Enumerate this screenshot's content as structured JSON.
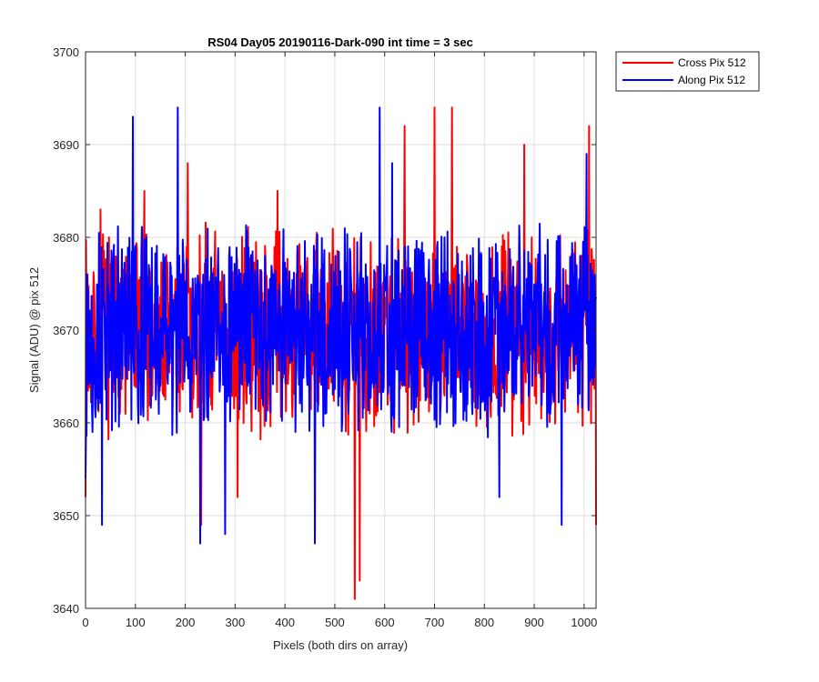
{
  "chart_data": {
    "type": "line",
    "title": "RS04 Day05 20190116-Dark-090 int time = 3 sec",
    "xlabel": "Pixels (both dirs on array)",
    "ylabel": "Signal (ADU) @ pix 512",
    "xlim": [
      0,
      1024
    ],
    "ylim": [
      3640,
      3700
    ],
    "xticks": [
      0,
      100,
      200,
      300,
      400,
      500,
      600,
      700,
      800,
      900,
      1000
    ],
    "yticks": [
      3640,
      3650,
      3660,
      3670,
      3680,
      3690,
      3700
    ],
    "xtick_labels": [
      "0",
      "100",
      "200",
      "300",
      "400",
      "500",
      "600",
      "700",
      "800",
      "900",
      "1000"
    ],
    "ytick_labels": [
      "3640",
      "3650",
      "3660",
      "3670",
      "3680",
      "3690",
      "3700"
    ],
    "grid": true,
    "legend_position": "outside-top-right",
    "series": [
      {
        "name": "Cross Pix 512",
        "color": "#ff0000",
        "generator": {
          "n": 1024,
          "mean": 3670,
          "spread": 11,
          "seed": 7
        },
        "extremes": [
          [
            0,
            3652
          ],
          [
            4,
            3676
          ],
          [
            30,
            3683
          ],
          [
            118,
            3685
          ],
          [
            205,
            3688
          ],
          [
            232,
            3649
          ],
          [
            305,
            3652
          ],
          [
            385,
            3685
          ],
          [
            540,
            3641
          ],
          [
            550,
            3643
          ],
          [
            640,
            3692
          ],
          [
            700,
            3694
          ],
          [
            735,
            3694
          ],
          [
            880,
            3690
          ],
          [
            1010,
            3692
          ],
          [
            1024,
            3649
          ]
        ]
      },
      {
        "name": "Along Pix 512",
        "color": "#0000ff",
        "generator": {
          "n": 1024,
          "mean": 3670,
          "spread": 11,
          "seed": 13
        },
        "extremes": [
          [
            0,
            3654
          ],
          [
            3,
            3676
          ],
          [
            33,
            3649
          ],
          [
            95,
            3693
          ],
          [
            185,
            3694
          ],
          [
            230,
            3647
          ],
          [
            280,
            3648
          ],
          [
            460,
            3647
          ],
          [
            590,
            3694
          ],
          [
            615,
            3688
          ],
          [
            830,
            3652
          ],
          [
            955,
            3649
          ],
          [
            1005,
            3689
          ]
        ]
      }
    ]
  }
}
